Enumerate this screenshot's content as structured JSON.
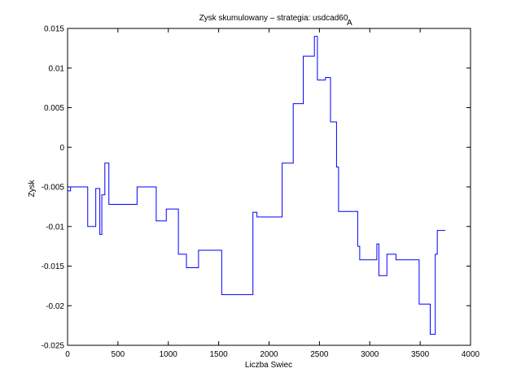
{
  "chart_data": {
    "type": "line",
    "title": "Zysk skumulowany – strategia: usdcad60",
    "title_subscript": "A",
    "xlabel": "Liczba Swiec",
    "ylabel": "Zysk",
    "xlim": [
      0,
      4000
    ],
    "ylim": [
      -0.025,
      0.015
    ],
    "xticks": [
      0,
      500,
      1000,
      1500,
      2000,
      2500,
      3000,
      3500,
      4000
    ],
    "yticks": [
      -0.025,
      -0.02,
      -0.015,
      -0.01,
      -0.005,
      0,
      0.005,
      0.01,
      0.015
    ],
    "xtick_labels": [
      "0",
      "500",
      "1000",
      "1500",
      "2000",
      "2500",
      "3000",
      "3500",
      "4000"
    ],
    "ytick_labels": [
      "-0.025",
      "-0.02",
      "-0.015",
      "-0.01",
      "-0.005",
      "0",
      "0.005",
      "0.01",
      "0.015"
    ],
    "grid": false,
    "step": true,
    "line_color": "#0000ff",
    "series": [
      {
        "x": [
          0,
          30,
          200,
          280,
          320,
          340,
          370,
          410,
          480,
          690,
          880,
          980,
          1100,
          1180,
          1300,
          1530,
          1840,
          1880,
          2130,
          2240,
          2340,
          2450,
          2480,
          2560,
          2610,
          2670,
          2690,
          2880,
          2900,
          3070,
          3090,
          3170,
          3260,
          3490,
          3600,
          3650,
          3670,
          3750
        ],
        "y": [
          -0.0055,
          -0.005,
          -0.01,
          -0.0052,
          -0.011,
          -0.006,
          -0.002,
          -0.0072,
          -0.0072,
          -0.005,
          -0.0093,
          -0.0078,
          -0.0135,
          -0.0152,
          -0.013,
          -0.0186,
          -0.0082,
          -0.0088,
          -0.002,
          0.0055,
          0.0115,
          0.014,
          0.0085,
          0.0088,
          0.0032,
          -0.0025,
          -0.0081,
          -0.0125,
          -0.0142,
          -0.0122,
          -0.0162,
          -0.0135,
          -0.0142,
          -0.0198,
          -0.0236,
          -0.0135,
          -0.0105,
          -0.0105
        ]
      }
    ]
  }
}
